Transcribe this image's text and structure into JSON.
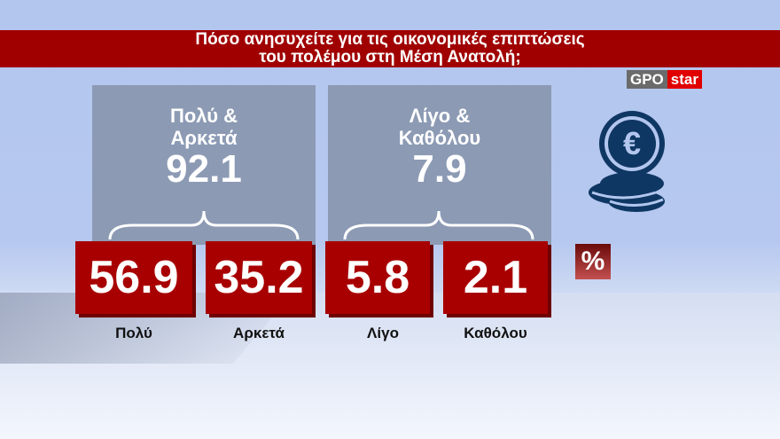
{
  "title": {
    "line1": "Πόσο ανησυχείτε για τις οικονομικές επιπτώσεις",
    "line2": "του πολέμου στη Μέση Ανατολή;"
  },
  "logo": {
    "left": "GPO",
    "right": "star"
  },
  "unit": "%",
  "icon": "euro-coins-icon",
  "colors": {
    "accent": "#a80000",
    "panel": "#8c9ab4",
    "icon": "#0f3763"
  },
  "chart_data": {
    "type": "bar",
    "title": "Πόσο ανησυχείτε για τις οικονομικές επιπτώσεις του πολέμου στη Μέση Ανατολή;",
    "unit": "%",
    "categories": [
      "Πολύ",
      "Αρκετά",
      "Λίγο",
      "Καθόλου"
    ],
    "values": [
      "56.9",
      "35.2",
      "5.8",
      "2.1"
    ],
    "groups": [
      {
        "label1": "Πολύ &",
        "label2": "Αρκετά",
        "value": "92.1"
      },
      {
        "label1": "Λίγο &",
        "label2": "Καθόλου",
        "value": "7.9"
      }
    ]
  }
}
